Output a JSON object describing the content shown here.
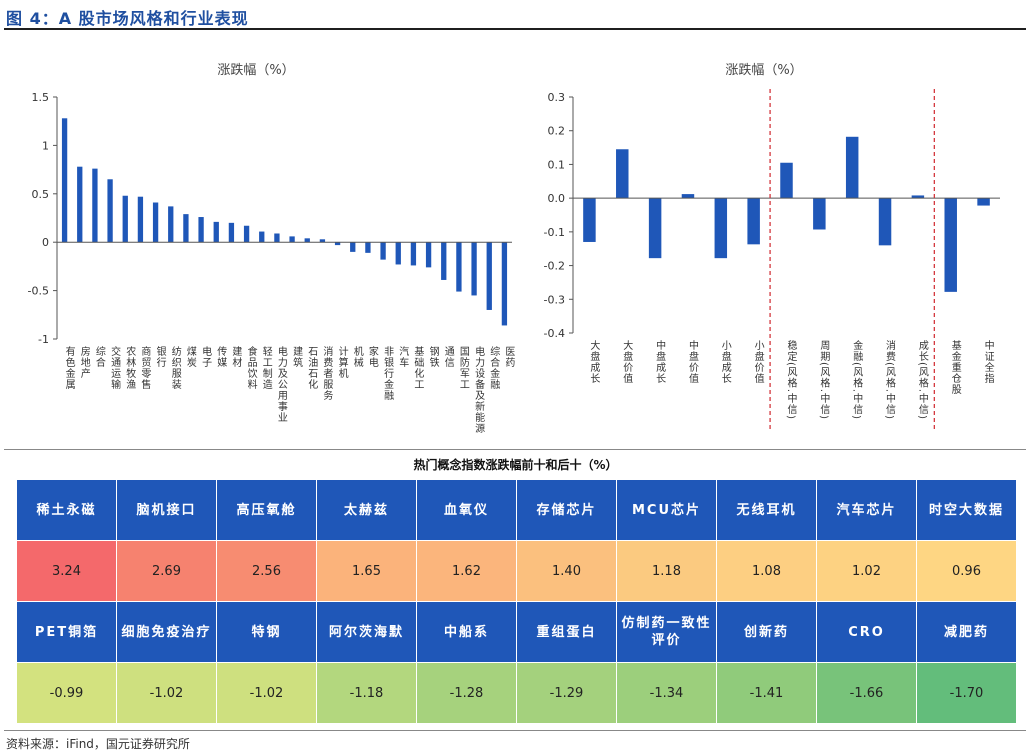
{
  "figure_title": "图 4：A 股市场风格和行业表现",
  "chart_data": [
    {
      "type": "bar",
      "title": "涨跌幅（%）",
      "ylim": [
        -1,
        1.5
      ],
      "yticks": [
        "1.5",
        "1",
        "0.5",
        "0",
        "-0.5",
        "-1"
      ],
      "ytick_values": [
        1.5,
        1,
        0.5,
        0,
        -0.5,
        -1
      ],
      "categories": [
        "有色金属",
        "房地产",
        "综合",
        "交通运输",
        "农林牧渔",
        "商贸零售",
        "银行",
        "纺织服装",
        "煤炭",
        "电子",
        "传媒",
        "建材",
        "食品饮料",
        "轻工制造",
        "电力及公用事业",
        "建筑",
        "石油石化",
        "消费者服务",
        "计算机",
        "机械",
        "家电",
        "非银行金融",
        "汽车",
        "基础化工",
        "钢铁",
        "通信",
        "国防军工",
        "电力设备及新能源",
        "综合金融",
        "医药"
      ],
      "values": [
        1.28,
        0.78,
        0.76,
        0.65,
        0.48,
        0.47,
        0.41,
        0.37,
        0.29,
        0.26,
        0.21,
        0.2,
        0.17,
        0.11,
        0.09,
        0.06,
        0.04,
        0.03,
        -0.03,
        -0.1,
        -0.11,
        -0.18,
        -0.23,
        -0.24,
        -0.26,
        -0.39,
        -0.51,
        -0.55,
        -0.7,
        -0.86
      ],
      "color": "#1f57b8"
    },
    {
      "type": "bar",
      "title": "涨跌幅（%）",
      "ylim": [
        -0.4,
        0.3
      ],
      "yticks": [
        "0.3",
        "0.2",
        "0.1",
        "0.0",
        "-0.1",
        "-0.2",
        "-0.3",
        "-0.4"
      ],
      "ytick_values": [
        0.3,
        0.2,
        0.1,
        0.0,
        -0.1,
        -0.2,
        -0.3,
        -0.4
      ],
      "categories": [
        "大盘成长",
        "大盘价值",
        "中盘成长",
        "中盘价值",
        "小盘成长",
        "小盘价值",
        "稳定(风格.中信)",
        "周期(风格.中信)",
        "金融(风格.中信)",
        "消费(风格.中信)",
        "成长(风格.中信)",
        "基金重仓股",
        "中证全指"
      ],
      "values": [
        -0.13,
        0.145,
        -0.178,
        0.012,
        -0.178,
        -0.137,
        0.105,
        -0.093,
        0.182,
        -0.14,
        0.008,
        -0.278,
        -0.022
      ],
      "separators_after_index": [
        5,
        10
      ],
      "color": "#1f57b8"
    }
  ],
  "table": {
    "title": "热门概念指数涨跌幅前十和后十（%）",
    "top_names": [
      "稀土永磁",
      "脑机接口",
      "高压氧舱",
      "太赫兹",
      "血氧仪",
      "存储芯片",
      "MCU芯片",
      "无线耳机",
      "汽车芯片",
      "时空大数据"
    ],
    "top_values": [
      "3.24",
      "2.69",
      "2.56",
      "1.65",
      "1.62",
      "1.40",
      "1.18",
      "1.08",
      "1.02",
      "0.96"
    ],
    "top_colors": [
      "#f4696b",
      "#f6826f",
      "#f78c71",
      "#fbb37b",
      "#fbb57c",
      "#fbc07e",
      "#fbca80",
      "#fdcf82",
      "#fdd282",
      "#fed683"
    ],
    "bottom_names": [
      "PET铜箔",
      "细胞免疫治疗",
      "特钢",
      "阿尔茨海默",
      "中船系",
      "重组蛋白",
      "仿制药一致性评价",
      "创新药",
      "CRO",
      "减肥药"
    ],
    "bottom_values": [
      "-0.99",
      "-1.02",
      "-1.02",
      "-1.18",
      "-1.28",
      "-1.29",
      "-1.34",
      "-1.41",
      "-1.66",
      "-1.70"
    ],
    "bottom_colors": [
      "#d3e27f",
      "#cee07f",
      "#cee07f",
      "#b3d77e",
      "#a6d27d",
      "#a4d17d",
      "#9ccf7c",
      "#90cb7b",
      "#78c37a",
      "#63bd7b"
    ]
  },
  "source": "资料来源：iFind，国元证券研究所"
}
